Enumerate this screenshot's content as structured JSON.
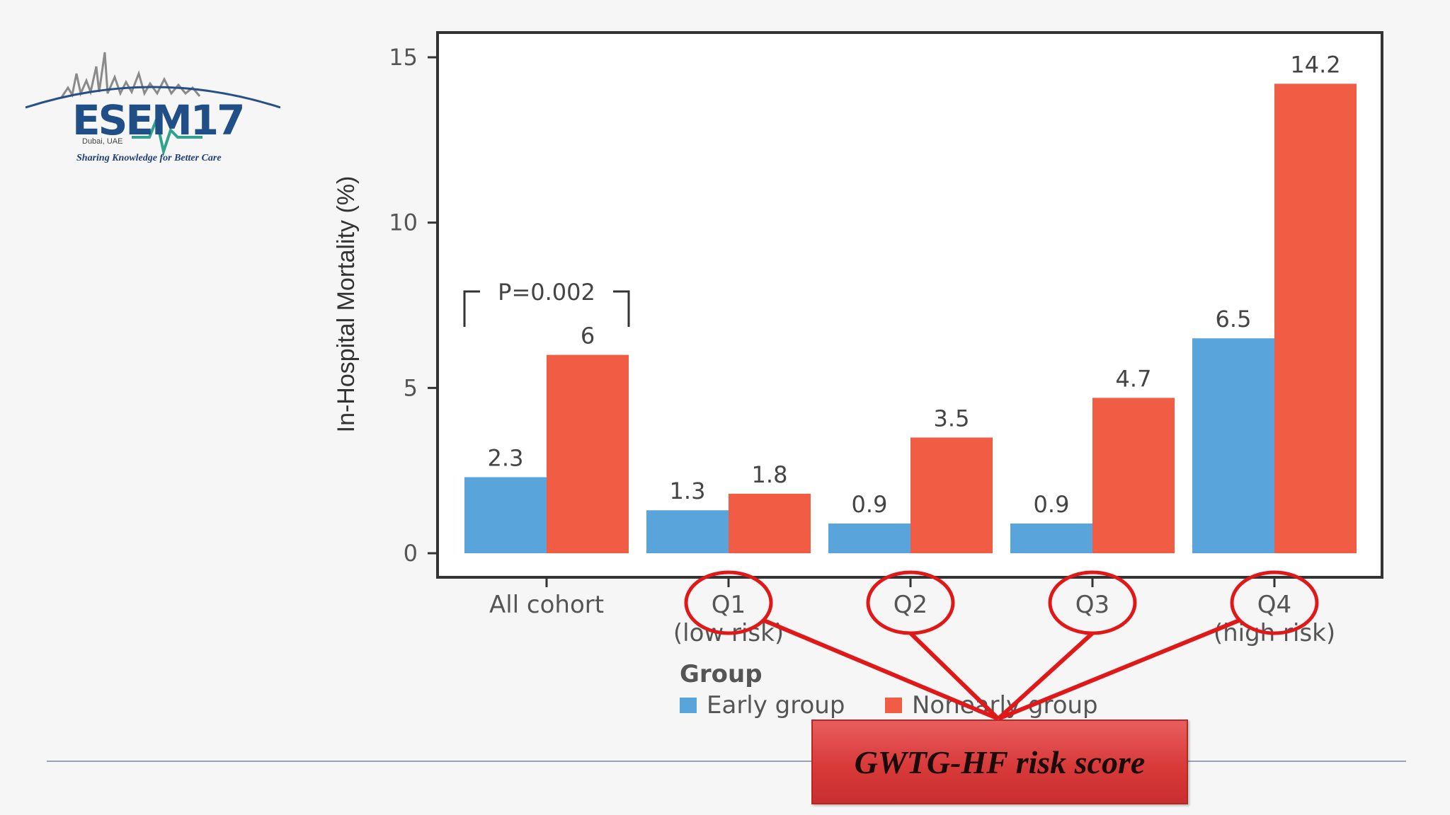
{
  "logo": {
    "wordmark": "ESEM17",
    "location": "Dubai, UAE",
    "tagline": "Sharing Knowledge for Better Care"
  },
  "callout": {
    "label": "GWTG-HF risk score"
  },
  "chart_data": {
    "type": "bar",
    "title": "",
    "xlabel": "",
    "ylabel": "In-Hospital Mortality (%)",
    "ylim": [
      0,
      15.4
    ],
    "yticks": [
      0,
      5,
      10,
      15
    ],
    "grid": false,
    "categories": [
      "All cohort",
      "Q1\n(low risk)",
      "Q2",
      "Q3",
      "Q4\n(high risk)"
    ],
    "series": [
      {
        "name": "Early group",
        "color": "#5aa4dc",
        "values": [
          2.3,
          1.3,
          0.9,
          0.9,
          6.5
        ]
      },
      {
        "name": "Nonearly group",
        "color": "#f05d44",
        "values": [
          6,
          1.8,
          3.5,
          4.7,
          14.2
        ]
      }
    ],
    "value_labels": [
      [
        "2.3",
        "1.3",
        "0.9",
        "0.9",
        "6.5"
      ],
      [
        "6",
        "1.8",
        "3.5",
        "4.7",
        "14.2"
      ]
    ],
    "legend": {
      "title": "Group",
      "placement": "bottom-left"
    },
    "annotation": {
      "text": "P=0.002",
      "category": "All cohort"
    },
    "highlighted_categories": [
      "Q1",
      "Q2",
      "Q3",
      "Q4"
    ],
    "highlight_color": "#e01818"
  }
}
